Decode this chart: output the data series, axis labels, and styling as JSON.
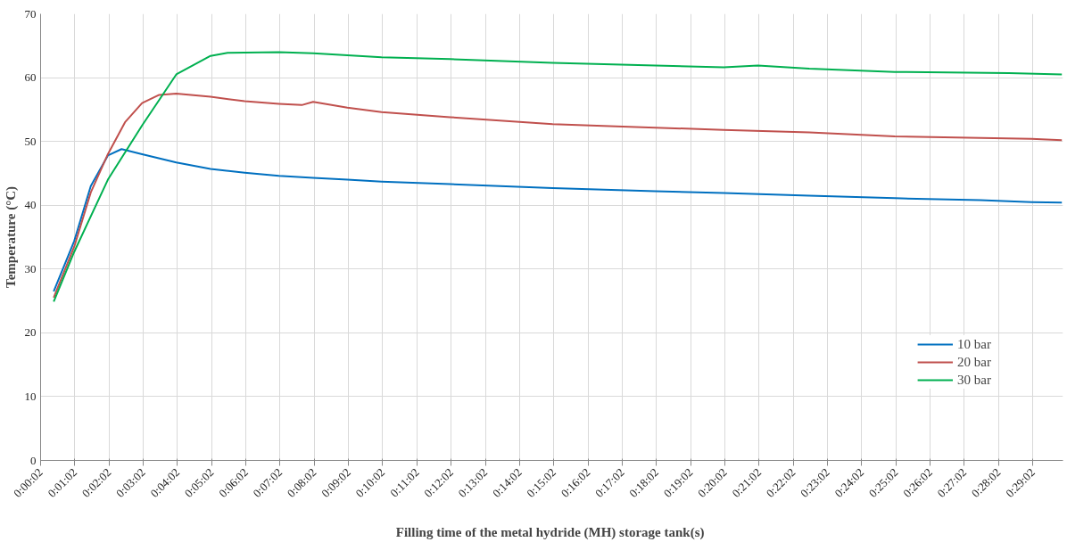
{
  "chart_data": {
    "type": "line",
    "xlabel": "Filling time of the metal hydride  (MH) storage tank(s)",
    "ylabel": "Temperature (°C)",
    "xlim": [
      2,
      1795
    ],
    "ylim": [
      0,
      70
    ],
    "yticks": [
      0,
      10,
      20,
      30,
      40,
      50,
      60,
      70
    ],
    "xticks": [
      {
        "value": 2,
        "label": "0:00:02"
      },
      {
        "value": 62,
        "label": "0:01:02"
      },
      {
        "value": 122,
        "label": "0:02:02"
      },
      {
        "value": 182,
        "label": "0:03:02"
      },
      {
        "value": 242,
        "label": "0:04:02"
      },
      {
        "value": 302,
        "label": "0:05:02"
      },
      {
        "value": 362,
        "label": "0:06:02"
      },
      {
        "value": 422,
        "label": "0:07:02"
      },
      {
        "value": 482,
        "label": "0:08:02"
      },
      {
        "value": 542,
        "label": "0:09:02"
      },
      {
        "value": 602,
        "label": "0:10:02"
      },
      {
        "value": 662,
        "label": "0:11:02"
      },
      {
        "value": 722,
        "label": "0:12:02"
      },
      {
        "value": 782,
        "label": "0:13:02"
      },
      {
        "value": 842,
        "label": "0:14:02"
      },
      {
        "value": 902,
        "label": "0:15:02"
      },
      {
        "value": 962,
        "label": "0:16:02"
      },
      {
        "value": 1022,
        "label": "0:17:02"
      },
      {
        "value": 1082,
        "label": "0:18:02"
      },
      {
        "value": 1142,
        "label": "0:19:02"
      },
      {
        "value": 1202,
        "label": "0:20:02"
      },
      {
        "value": 1262,
        "label": "0:21:02"
      },
      {
        "value": 1322,
        "label": "0:22:02"
      },
      {
        "value": 1382,
        "label": "0:23:02"
      },
      {
        "value": 1442,
        "label": "0:24:02"
      },
      {
        "value": 1502,
        "label": "0:25:02"
      },
      {
        "value": 1562,
        "label": "0:26:02"
      },
      {
        "value": 1622,
        "label": "0:27:02"
      },
      {
        "value": 1682,
        "label": "0:28:02"
      },
      {
        "value": 1742,
        "label": "0:29:02"
      }
    ],
    "grid": true,
    "legend": "bottom right",
    "marker": "none",
    "line_style": "solid",
    "series": [
      {
        "name": "10 bar",
        "color": "#0070c0",
        "x": [
          25,
          61,
          90,
          120,
          144,
          180,
          240,
          300,
          360,
          420,
          480,
          540,
          600,
          720,
          900,
          1080,
          1200,
          1350,
          1500,
          1650,
          1740,
          1793
        ],
        "values": [
          26.5,
          34.4,
          43,
          47.8,
          48.8,
          48,
          46.7,
          45.7,
          45.1,
          44.6,
          44.3,
          44,
          43.7,
          43.3,
          42.7,
          42.2,
          41.9,
          41.5,
          41.1,
          40.8,
          40.5,
          40.4
        ]
      },
      {
        "name": "20 bar",
        "color": "#c0504d",
        "x": [
          25,
          61,
          90,
          120,
          150,
          180,
          210,
          240,
          300,
          360,
          420,
          460,
          480,
          540,
          600,
          720,
          900,
          1000,
          1200,
          1350,
          1500,
          1740,
          1793
        ],
        "values": [
          25.5,
          33.5,
          42,
          48,
          53,
          56,
          57.3,
          57.5,
          57,
          56.3,
          55.9,
          55.7,
          56.2,
          55.3,
          54.6,
          53.8,
          52.7,
          52.4,
          51.8,
          51.4,
          50.8,
          50.4,
          50.2
        ]
      },
      {
        "name": "30 bar",
        "color": "#00b050",
        "x": [
          25,
          61,
          120,
          180,
          240,
          300,
          330,
          420,
          480,
          600,
          720,
          900,
          1080,
          1200,
          1260,
          1350,
          1500,
          1700,
          1793
        ],
        "values": [
          24.9,
          32.7,
          44,
          52.5,
          60.5,
          63.4,
          63.9,
          64,
          63.8,
          63.2,
          62.9,
          62.3,
          61.9,
          61.6,
          61.9,
          61.4,
          60.9,
          60.7,
          60.5
        ]
      }
    ]
  }
}
